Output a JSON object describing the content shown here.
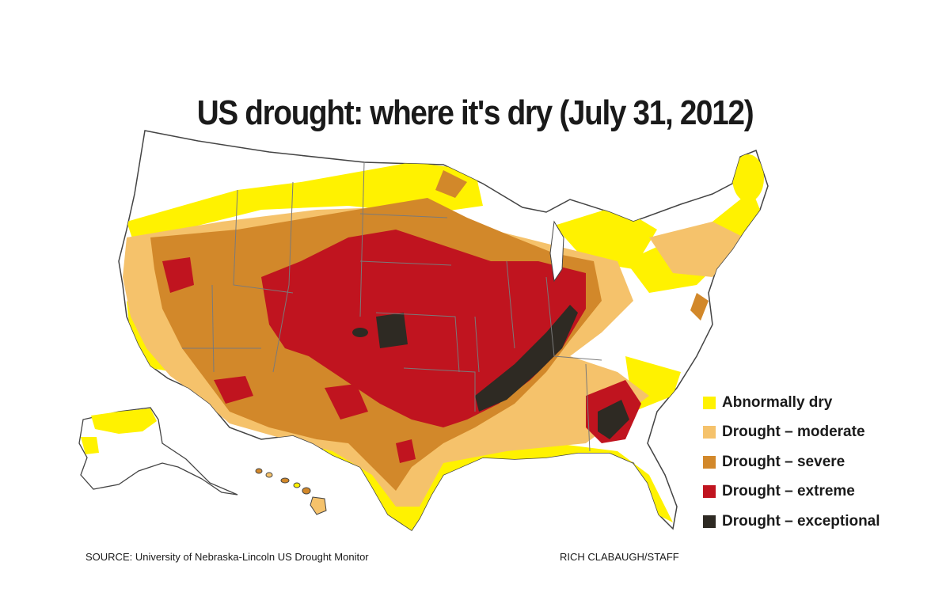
{
  "title": "US drought: where it's dry (July 31, 2012)",
  "legend": [
    {
      "label": "Abnormally dry",
      "color": "#fff200"
    },
    {
      "label": "Drought – moderate",
      "color": "#f5c26b"
    },
    {
      "label": "Drought – severe",
      "color": "#d2882a"
    },
    {
      "label": "Drought – extreme",
      "color": "#c0141f"
    },
    {
      "label": "Drought – exceptional",
      "color": "#2e2a23"
    }
  ],
  "source": "SOURCE: University of Nebraska-Lincoln US Drought Monitor",
  "credit": "RICH CLABAUGH/STAFF"
}
